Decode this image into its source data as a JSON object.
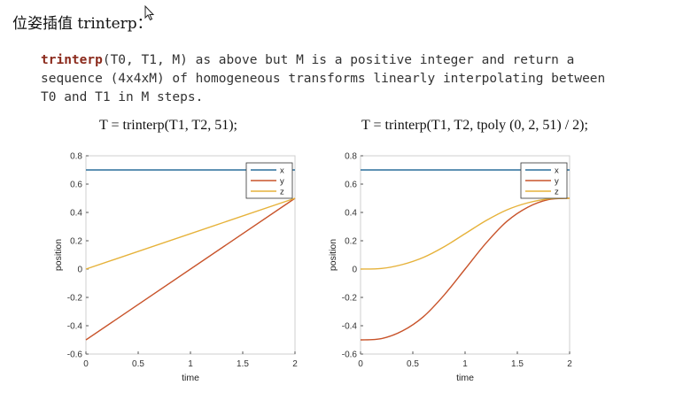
{
  "heading": "位姿插值 trinterp：",
  "description": {
    "keyword": "trinterp",
    "line1_rest": "(T0, T1, M) as above but M is a positive integer and return a",
    "line2": "sequence (4x4xM) of homogeneous transforms linearly interpolating between",
    "line3": "T0 and T1 in M steps."
  },
  "colors": {
    "x": "#2a6f9b",
    "y": "#c8532a",
    "z": "#e6b23a"
  },
  "chart_data": [
    {
      "type": "line",
      "title": "T = trinterp(T1, T2, 51);",
      "xlabel": "time",
      "ylabel": "position",
      "xlim": [
        0,
        2
      ],
      "ylim": [
        -0.6,
        0.8
      ],
      "xticks": [
        "0",
        "0.5",
        "1",
        "1.5",
        "2"
      ],
      "yticks": [
        "-0.6",
        "-0.4",
        "-0.2",
        "0",
        "0.2",
        "0.4",
        "0.6",
        "0.8"
      ],
      "legend_position": "top-right",
      "grid": false,
      "series": [
        {
          "name": "x",
          "color": "#2a6f9b",
          "x": [
            0,
            2
          ],
          "y": [
            0.7,
            0.7
          ]
        },
        {
          "name": "y",
          "color": "#c8532a",
          "x": [
            0,
            2
          ],
          "y": [
            -0.5,
            0.5
          ]
        },
        {
          "name": "z",
          "color": "#e6b23a",
          "x": [
            0,
            2
          ],
          "y": [
            0,
            0.5
          ]
        }
      ]
    },
    {
      "type": "line",
      "title": "T = trinterp(T1, T2, tpoly (0, 2, 51) / 2);",
      "xlabel": "time",
      "ylabel": "position",
      "xlim": [
        0,
        2
      ],
      "ylim": [
        -0.6,
        0.8
      ],
      "xticks": [
        "0",
        "0.5",
        "1",
        "1.5",
        "2"
      ],
      "yticks": [
        "-0.6",
        "-0.4",
        "-0.2",
        "0",
        "0.2",
        "0.4",
        "0.6",
        "0.8"
      ],
      "legend_position": "top-right",
      "grid": false,
      "series": [
        {
          "name": "x",
          "color": "#2a6f9b",
          "x": [
            0,
            0.2,
            0.4,
            0.6,
            0.8,
            1.0,
            1.2,
            1.4,
            1.6,
            1.8,
            2.0
          ],
          "y": [
            0.7,
            0.7,
            0.7,
            0.7,
            0.7,
            0.7,
            0.7,
            0.7,
            0.7,
            0.7,
            0.7
          ]
        },
        {
          "name": "y",
          "color": "#c8532a",
          "x": [
            0,
            0.2,
            0.4,
            0.6,
            0.8,
            1.0,
            1.2,
            1.4,
            1.6,
            1.8,
            2.0
          ],
          "y": [
            -0.5,
            -0.491,
            -0.437,
            -0.337,
            -0.183,
            0.0,
            0.183,
            0.337,
            0.437,
            0.491,
            0.5
          ]
        },
        {
          "name": "z",
          "color": "#e6b23a",
          "x": [
            0,
            0.2,
            0.4,
            0.6,
            0.8,
            1.0,
            1.2,
            1.4,
            1.6,
            1.8,
            2.0
          ],
          "y": [
            0.0,
            0.004,
            0.032,
            0.082,
            0.158,
            0.25,
            0.342,
            0.418,
            0.468,
            0.496,
            0.5
          ]
        }
      ]
    }
  ]
}
